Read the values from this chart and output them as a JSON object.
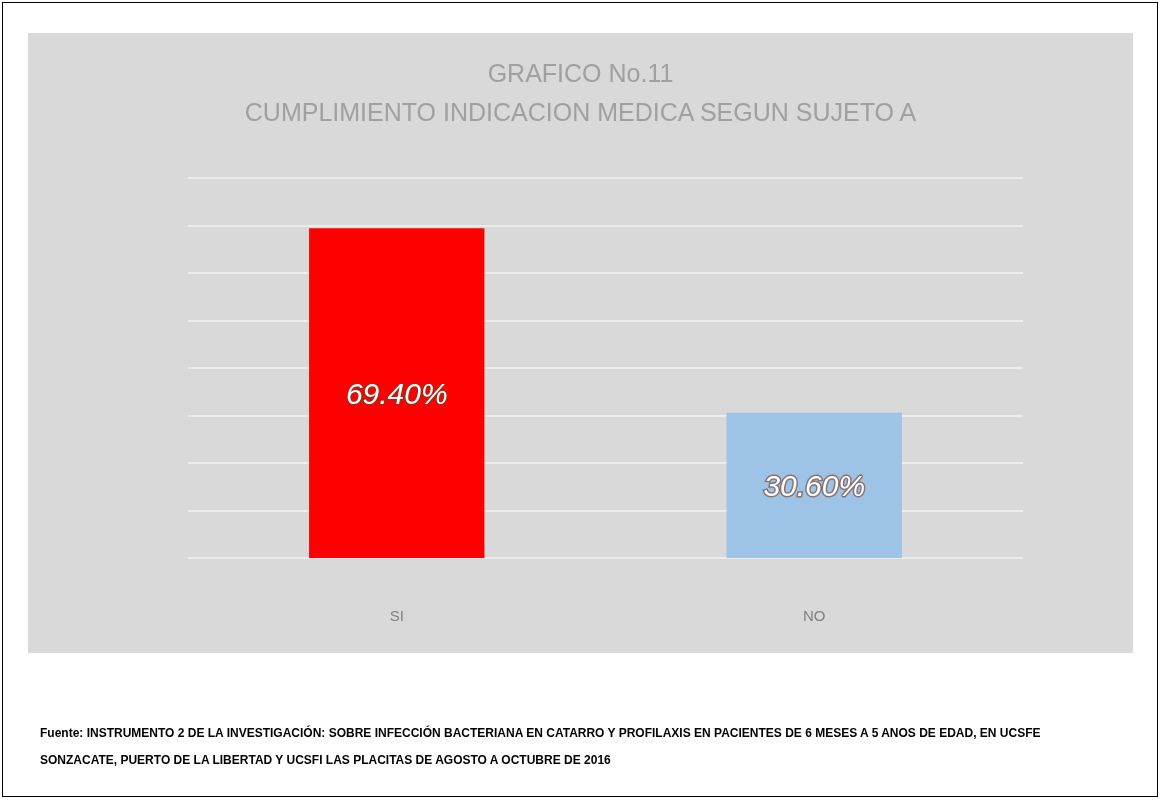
{
  "chart_data": {
    "type": "bar",
    "title": "GRAFICO No.11",
    "subtitle": "CUMPLIMIENTO INDICACION MEDICA SEGUN SUJETO A",
    "categories": [
      "SI",
      "NO"
    ],
    "values": [
      69.4,
      30.6
    ],
    "colors": [
      "#ff0000",
      "#9dc3e6"
    ],
    "value_labels": [
      "69.40%",
      "30.60%"
    ],
    "ylim": [
      0,
      80
    ],
    "yticks": [
      {
        "value": 0,
        "label": null
      },
      {
        "value": 10,
        "label": null
      },
      {
        "value": 20,
        "label": null
      },
      {
        "value": 30,
        "label": null
      },
      {
        "value": 40,
        "label": null
      },
      {
        "value": 50,
        "label": null
      },
      {
        "value": 60,
        "label": null
      },
      {
        "value": 70,
        "label": null
      },
      {
        "value": 80,
        "label": null
      }
    ],
    "grid": "y",
    "annotations": [
      "Fuente: INSTRUMENTO 2 DE LA INVESTIGACIÓN: SOBRE INFECCIÓN BACTERIANA EN CATARRO Y PROFILAXIS EN PACIENTES DE 6 MESES A 5 ANOS DE EDAD, EN UCSFE SONZACATE, PUERTO DE LA LIBERTAD Y UCSFI LAS PLACITAS DE AGOSTO A OCTUBRE DE 2016"
    ]
  }
}
